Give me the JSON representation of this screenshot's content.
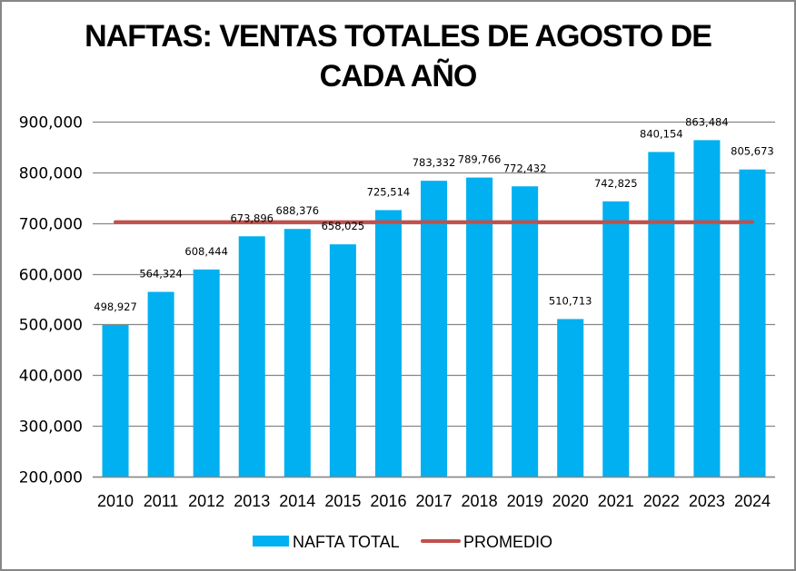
{
  "chart_data": {
    "type": "bar",
    "title_lines": [
      "NAFTAS: VENTAS TOTALES DE AGOSTO DE",
      "CADA AÑO"
    ],
    "xlabel": "",
    "ylabel": "",
    "categories": [
      "2010",
      "2011",
      "2012",
      "2013",
      "2014",
      "2015",
      "2016",
      "2017",
      "2018",
      "2019",
      "2020",
      "2021",
      "2022",
      "2023",
      "2024"
    ],
    "series": [
      {
        "name": "NAFTA TOTAL",
        "kind": "bar",
        "color": "#00B0F0",
        "values": [
          498927,
          564324,
          608444,
          673896,
          688376,
          658025,
          725514,
          783332,
          789766,
          772432,
          510713,
          742825,
          840154,
          863484,
          805673
        ],
        "labels": [
          "498,927",
          "564,324",
          "608,444",
          "673,896",
          "688,376",
          "658,025",
          "725,514",
          "783,332",
          "789,766",
          "772,432",
          "510,713",
          "742,825",
          "840,154",
          "863,484",
          "805,673"
        ]
      },
      {
        "name": "PROMEDIO",
        "kind": "line",
        "color": "#C0504D",
        "value": 702000
      }
    ],
    "ylim": [
      200000,
      900000
    ],
    "yticks": [
      200000,
      300000,
      400000,
      500000,
      600000,
      700000,
      800000,
      900000
    ],
    "ytick_labels": [
      "200,000",
      "300,000",
      "400,000",
      "500,000",
      "600,000",
      "700,000",
      "800,000",
      "900,000"
    ],
    "grid": true,
    "gridline_color": "#868686",
    "legend_position": "bottom",
    "legend": [
      "NAFTA TOTAL",
      "PROMEDIO"
    ]
  }
}
